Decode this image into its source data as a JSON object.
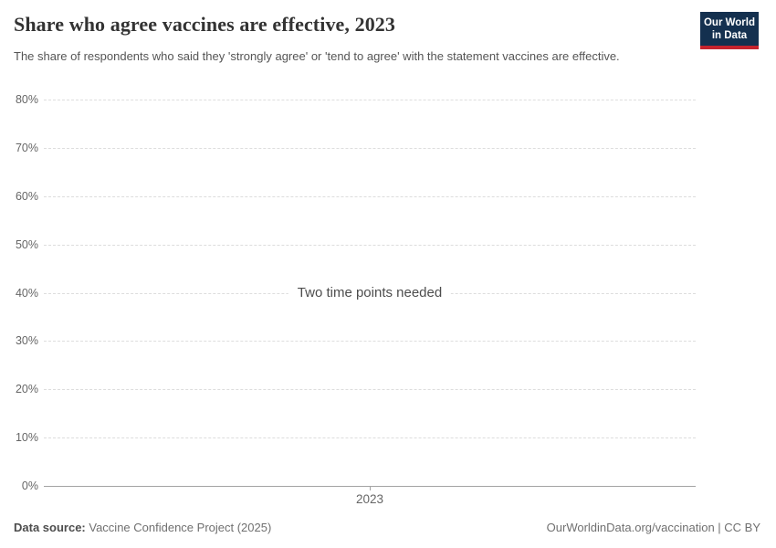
{
  "header": {
    "title": "Share who agree vaccines are effective, 2023",
    "subtitle": "The share of respondents who said they 'strongly agree' or 'tend to agree' with the statement vaccines are effective.",
    "logo": {
      "line1": "Our World",
      "line2": "in Data",
      "background_color": "#14304f",
      "stripe_color": "#c5232d"
    }
  },
  "chart_data": {
    "type": "line",
    "title": "Share who agree vaccines are effective, 2023",
    "message": "Two time points needed",
    "series": [],
    "x": [
      "2023"
    ],
    "xlabel": "",
    "ylabel": "",
    "ylim": [
      0,
      80
    ],
    "ytick_labels": [
      "80%",
      "70%",
      "60%",
      "50%",
      "40%",
      "30%",
      "20%",
      "10%",
      "0%"
    ],
    "ytick_values": [
      80,
      70,
      60,
      50,
      40,
      30,
      20,
      10,
      0
    ],
    "xtick_labels": [
      "2023"
    ],
    "grid": "horizontal-dashed",
    "gridline_color": "#dddddd",
    "axis_line_color": "#a3a3a3",
    "legend": "none",
    "note": "Plot area is empty; only one time point available so no line is drawn"
  },
  "footer": {
    "source_label": "Data source:",
    "source_value": "Vaccine Confidence Project (2025)",
    "citation": "OurWorldinData.org/vaccination | CC BY"
  }
}
